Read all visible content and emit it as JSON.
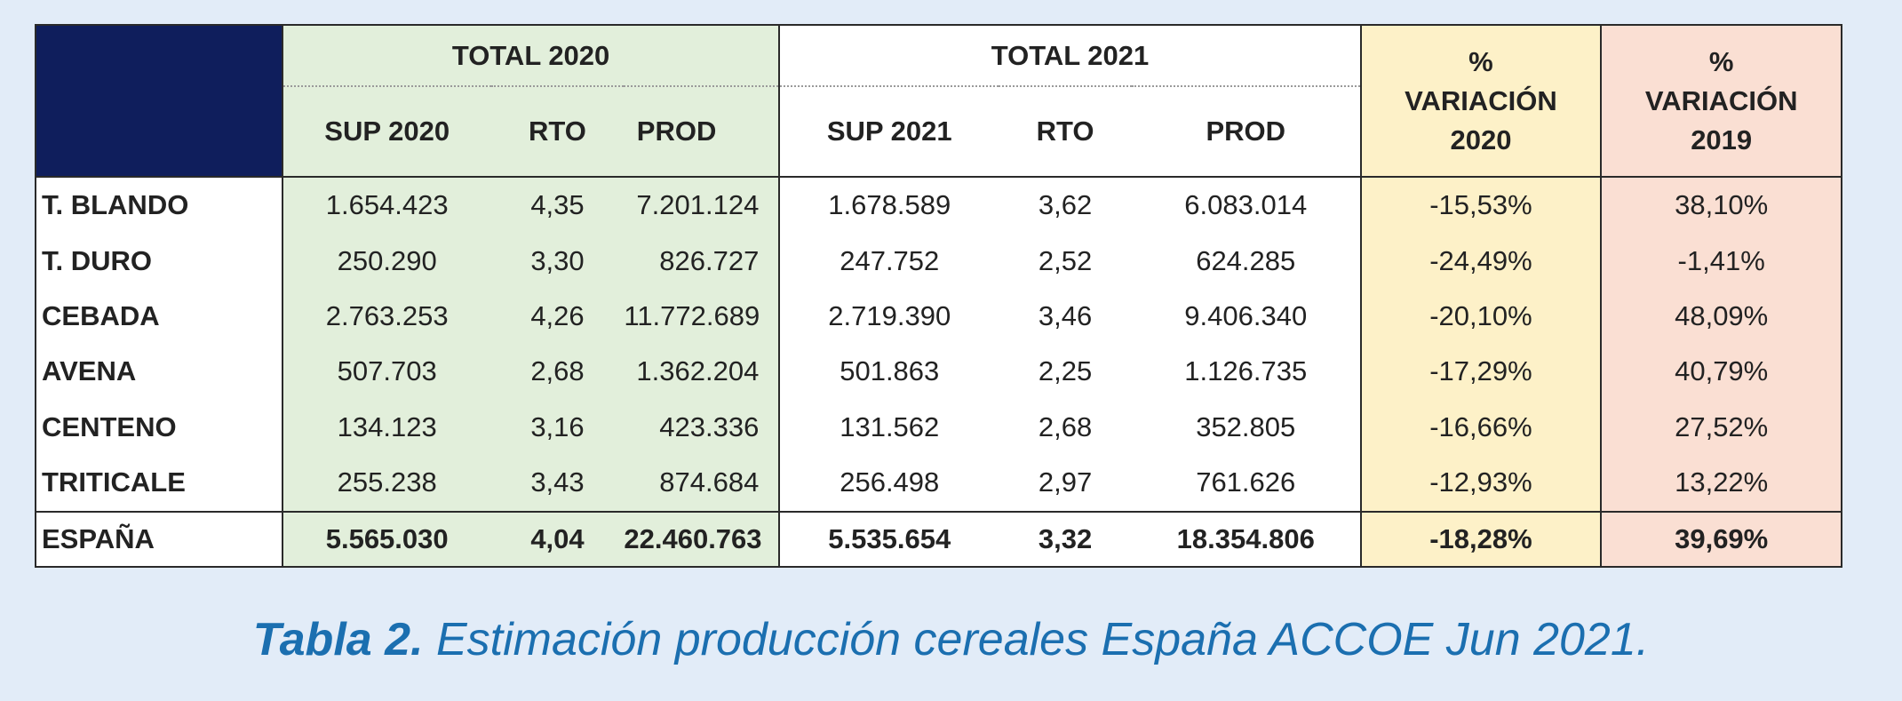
{
  "table": {
    "group_headers": {
      "total_2020": "TOTAL 2020",
      "total_2021": "TOTAL 2021",
      "var_2020_line1": "%",
      "var_2020_line2": "VARIACIÓN",
      "var_2020_line3": "2020",
      "var_2019_line1": "%",
      "var_2019_line2": "VARIACIÓN",
      "var_2019_line3": "2019"
    },
    "columns": [
      "SUP 2020",
      "RTO",
      "PROD",
      "SUP 2021",
      "RTO",
      "PROD"
    ],
    "rows": [
      {
        "name": "T. BLANDO",
        "cells": [
          "1.654.423",
          "4,35",
          "7.201.124",
          "1.678.589",
          "3,62",
          "6.083.014",
          "-15,53%",
          "38,10%"
        ]
      },
      {
        "name": "T. DURO",
        "cells": [
          "250.290",
          "3,30",
          "826.727",
          "247.752",
          "2,52",
          "624.285",
          "-24,49%",
          "-1,41%"
        ]
      },
      {
        "name": "CEBADA",
        "cells": [
          "2.763.253",
          "4,26",
          "11.772.689",
          "2.719.390",
          "3,46",
          "9.406.340",
          "-20,10%",
          "48,09%"
        ]
      },
      {
        "name": "AVENA",
        "cells": [
          "507.703",
          "2,68",
          "1.362.204",
          "501.863",
          "2,25",
          "1.126.735",
          "-17,29%",
          "40,79%"
        ]
      },
      {
        "name": "CENTENO",
        "cells": [
          "134.123",
          "3,16",
          "423.336",
          "131.562",
          "2,68",
          "352.805",
          "-16,66%",
          "27,52%"
        ]
      },
      {
        "name": "TRITICALE",
        "cells": [
          "255.238",
          "3,43",
          "874.684",
          "256.498",
          "2,97",
          "761.626",
          "-12,93%",
          "13,22%"
        ]
      }
    ],
    "total": {
      "name": "ESPAÑA",
      "cells": [
        "5.565.030",
        "4,04",
        "22.460.763",
        "5.535.654",
        "3,32",
        "18.354.806",
        "-18,28%",
        "39,69%"
      ]
    },
    "colors": {
      "header_corner": "#0f1e5c",
      "total_2020_bg": "#e2efdb",
      "var_2020_bg": "#fdf1c8",
      "var_2019_bg": "#fadfd3",
      "caption_color": "#1b6fb0",
      "page_bg": "#e2ecf8"
    }
  },
  "caption": {
    "label": "Tabla 2.",
    "text": " Estimación producción cereales España ACCOE Jun 2021."
  }
}
